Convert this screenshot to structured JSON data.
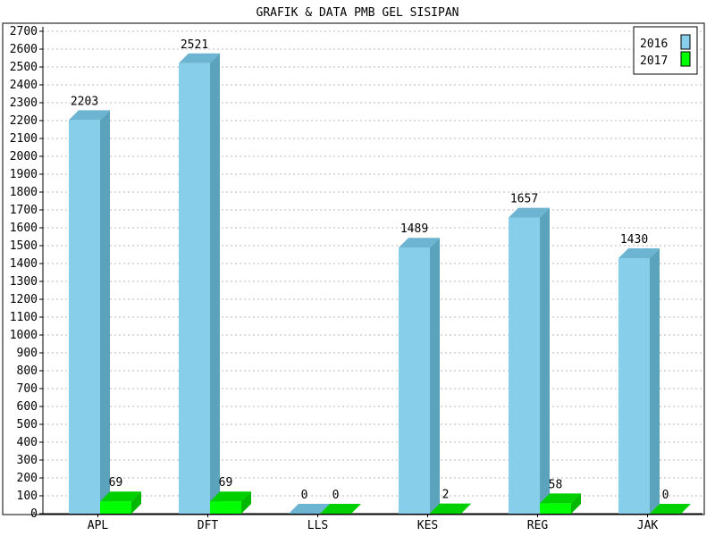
{
  "chart_data": {
    "type": "bar",
    "title": "GRAFIK & DATA PMB GEL SISIPAN",
    "xlabel": "",
    "ylabel": "",
    "categories": [
      "APL",
      "DFT",
      "LLS",
      "KES",
      "REG",
      "JAK"
    ],
    "series": [
      {
        "name": "2016",
        "values": [
          2203,
          2521,
          0,
          1489,
          1657,
          1430
        ],
        "color": "#87CEEB",
        "side_color": "#5BA3BD",
        "top_color": "#6CB4D2"
      },
      {
        "name": "2017",
        "values": [
          69,
          69,
          0,
          2,
          58,
          0
        ],
        "color": "#00FF00",
        "side_color": "#00B800",
        "top_color": "#00D000"
      }
    ],
    "ylim": [
      0,
      2700
    ],
    "ytick_step": 100,
    "grid": true,
    "legend_position": "top-right",
    "style": "3d-bar"
  }
}
